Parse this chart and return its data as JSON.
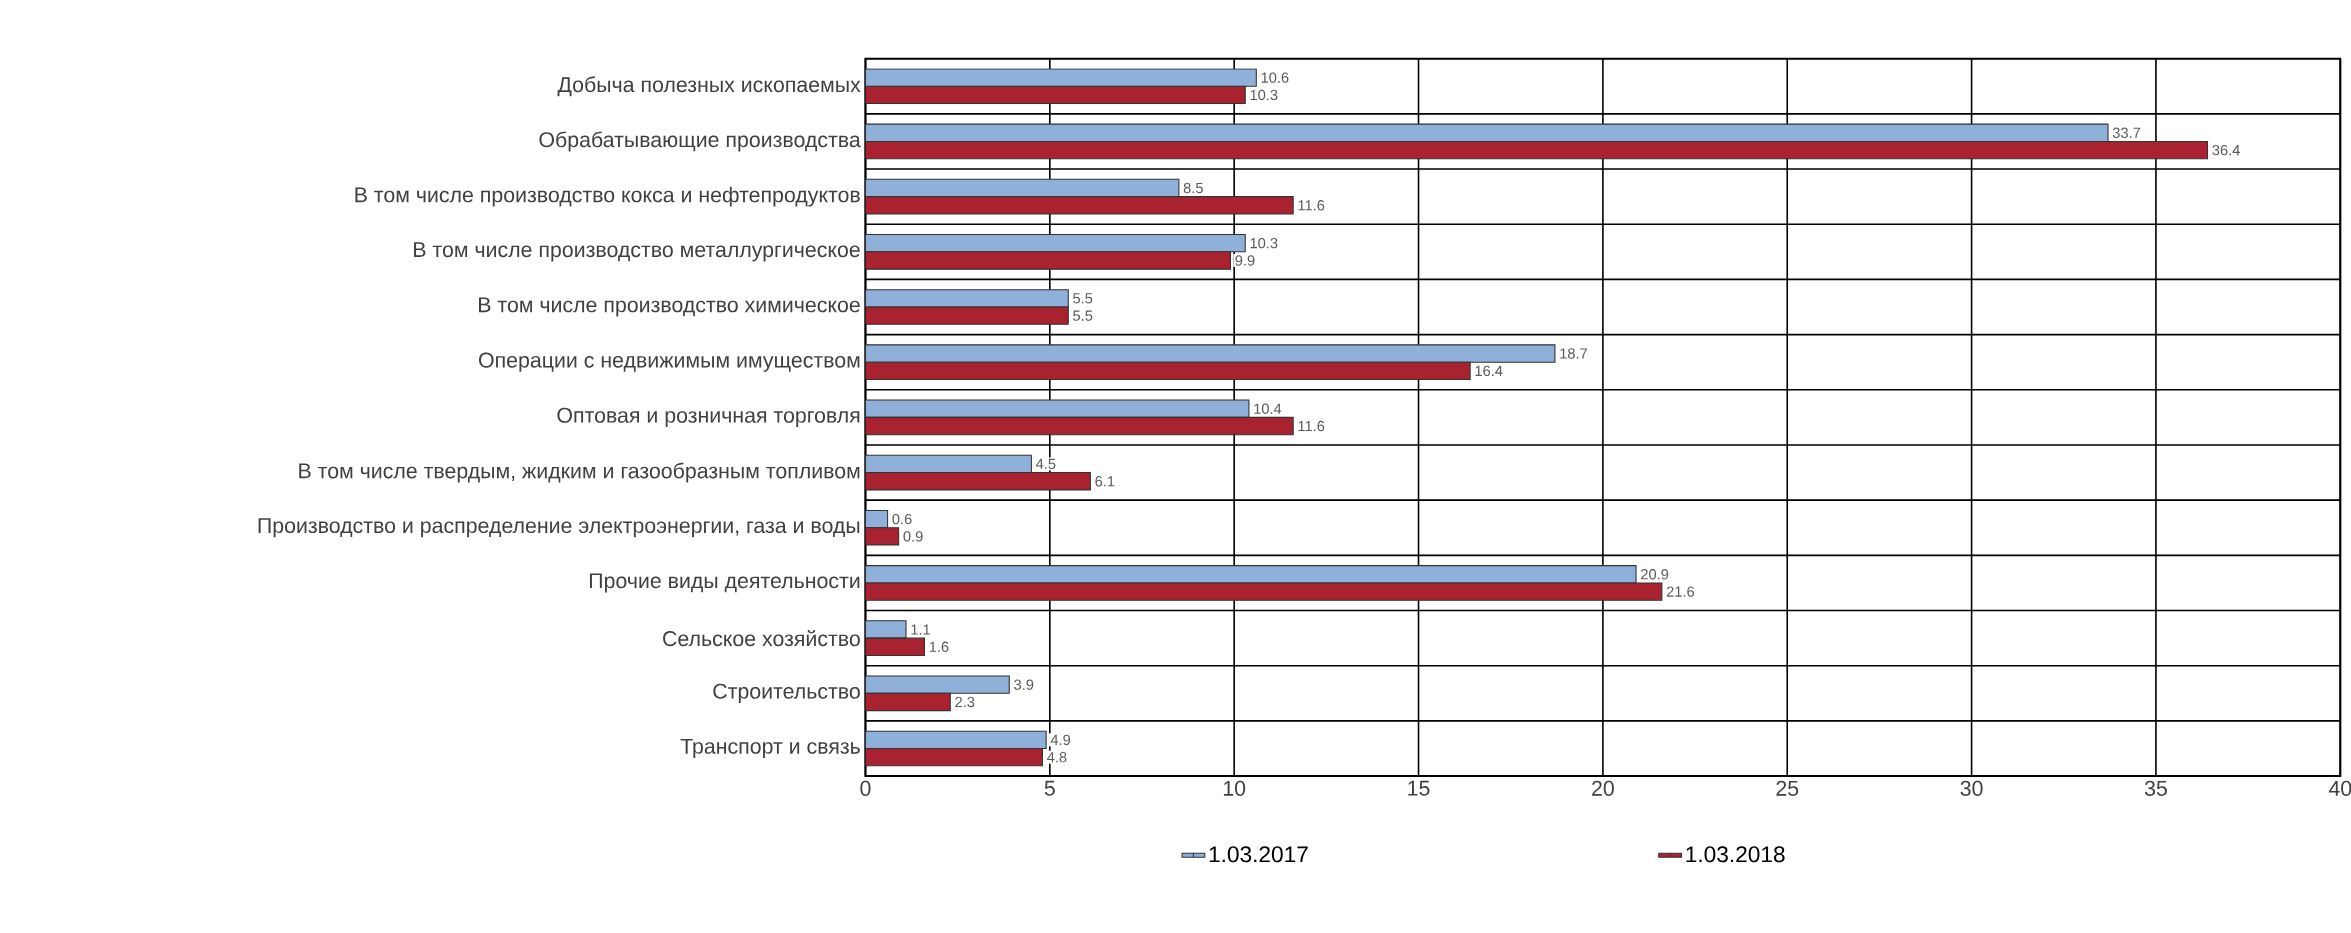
{
  "chart_data": {
    "type": "bar",
    "orientation": "horizontal",
    "categories": [
      "Добыча полезных ископаемых",
      "Обрабатывающие производства",
      "В том числе производство кокса и нефтепродуктов",
      "В том числе производство металлургическое",
      "В том числе производство химическое",
      "Операции с недвижимым имуществом",
      "Оптовая и розничная торговля",
      "В том числе твердым, жидким и газообразным топливом",
      "Производство и распределение электроэнергии, газа и воды",
      "Прочие виды деятельности",
      "Сельское хозяйство",
      "Строительство",
      "Транспорт и связь"
    ],
    "series": [
      {
        "name": "1.03.2017",
        "color": "#8fb0d8",
        "values": [
          10.6,
          33.7,
          8.5,
          10.3,
          5.5,
          18.7,
          10.4,
          4.5,
          0.6,
          20.9,
          1.1,
          3.9,
          4.9
        ],
        "value_labels": [
          "10.6",
          "33.7",
          "8.5",
          "10.3",
          "5.5",
          "18.7",
          "10.4",
          "4.5",
          "0.6",
          "20.9",
          "1.1",
          "3.9",
          "4.9"
        ]
      },
      {
        "name": "1.03.2018",
        "color": "#a8232f",
        "values": [
          10.3,
          36.4,
          11.6,
          9.9,
          5.5,
          16.4,
          11.6,
          6.1,
          0.9,
          21.6,
          1.6,
          2.3,
          4.8
        ],
        "value_labels": [
          "10.3",
          "36.4",
          "11.6",
          "9.9",
          "5.5",
          "16.4",
          "11.6",
          "6.1",
          "0.9",
          "21.6",
          "1.6",
          "2.3",
          "4.8"
        ]
      }
    ],
    "xlim": [
      0,
      40
    ],
    "xticks": [
      0,
      5,
      10,
      15,
      20,
      25,
      30,
      35,
      40
    ],
    "grid": true,
    "legend": "bottom"
  }
}
